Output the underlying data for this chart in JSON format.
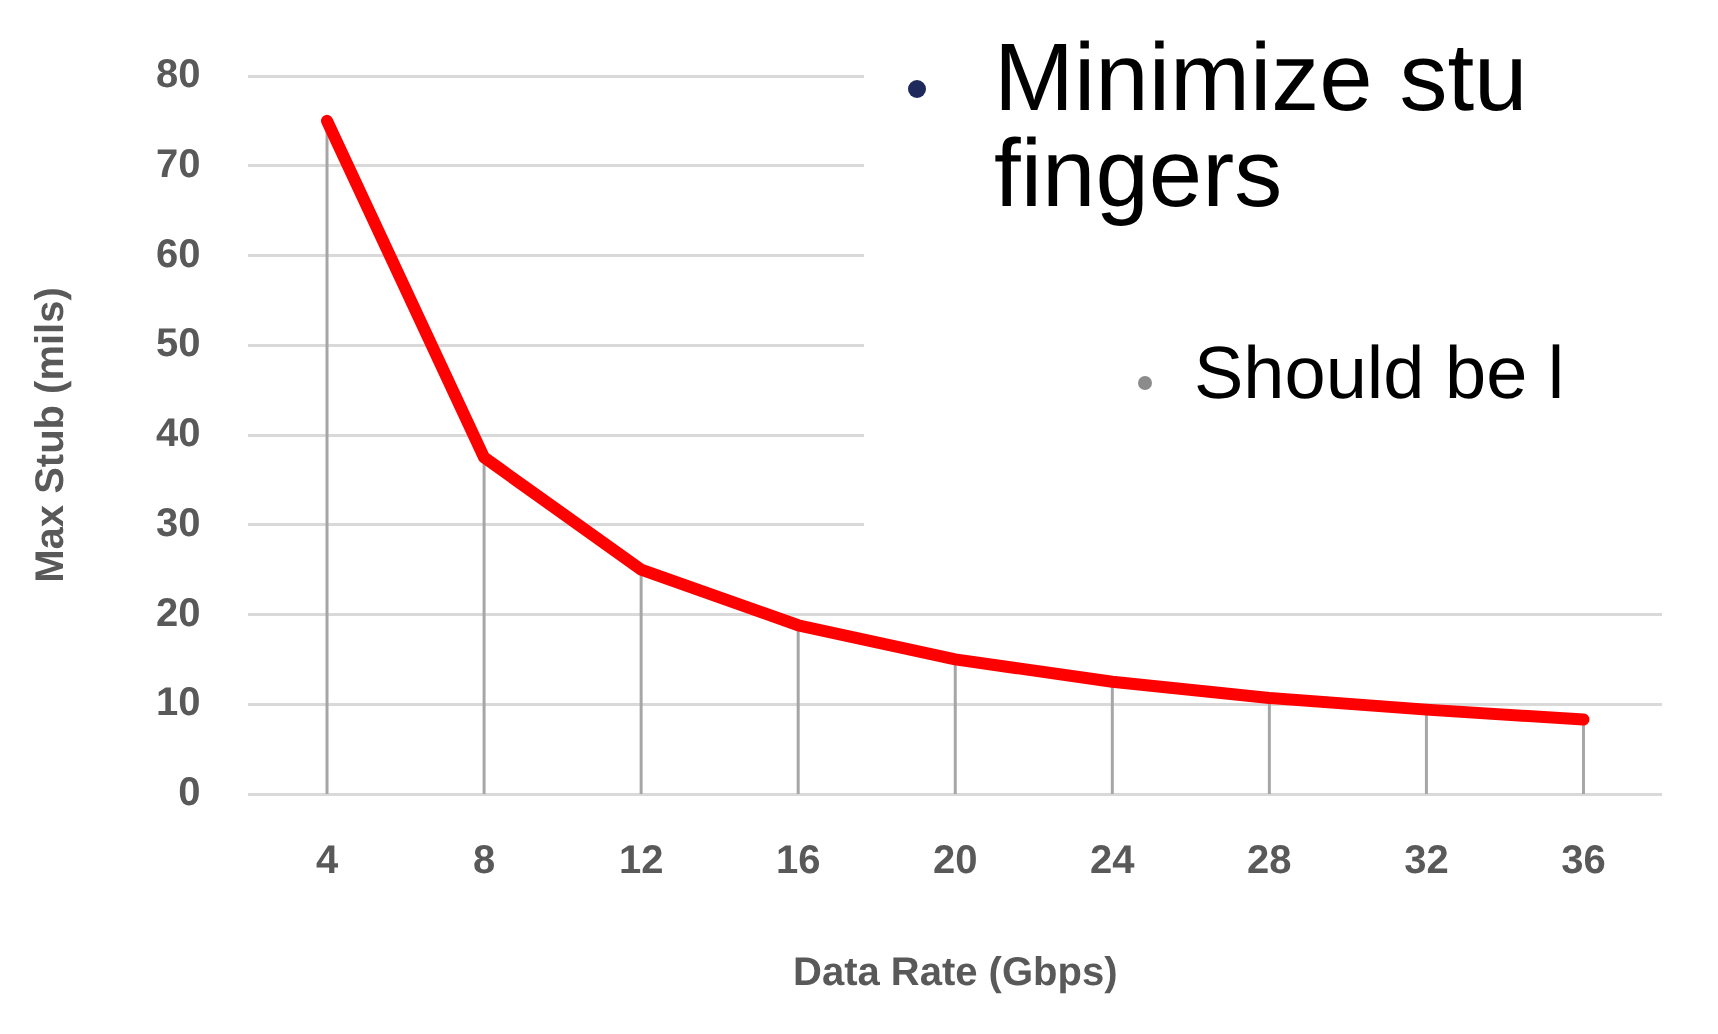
{
  "chart_data": {
    "type": "line",
    "xlabel": "Data Rate (Gbps)",
    "ylabel": "Max Stub (mils)",
    "categories": [
      "4",
      "8",
      "12",
      "16",
      "20",
      "24",
      "28",
      "32",
      "36"
    ],
    "series": [
      {
        "color": "#ff0000",
        "values": [
          75,
          37.5,
          25,
          18.8,
          15,
          12.5,
          10.7,
          9.4,
          8.3
        ],
        "errors": [
          [
            75,
            0
          ],
          [
            37.5,
            0
          ],
          [
            25,
            0
          ],
          [
            18.8,
            0
          ],
          [
            15,
            0
          ],
          [
            12.5,
            0
          ],
          [
            10.7,
            0
          ],
          [
            9.4,
            0
          ],
          [
            8.3,
            0
          ]
        ]
      }
    ],
    "ylim": [
      0,
      80
    ],
    "yticks": [
      0,
      10,
      20,
      30,
      40,
      50,
      60,
      70,
      80
    ],
    "grid": "y",
    "legend": false,
    "marker": "none",
    "line_style": "solid",
    "annotations": [
      "Minimize stu\nfingers",
      "Should be l"
    ]
  }
}
